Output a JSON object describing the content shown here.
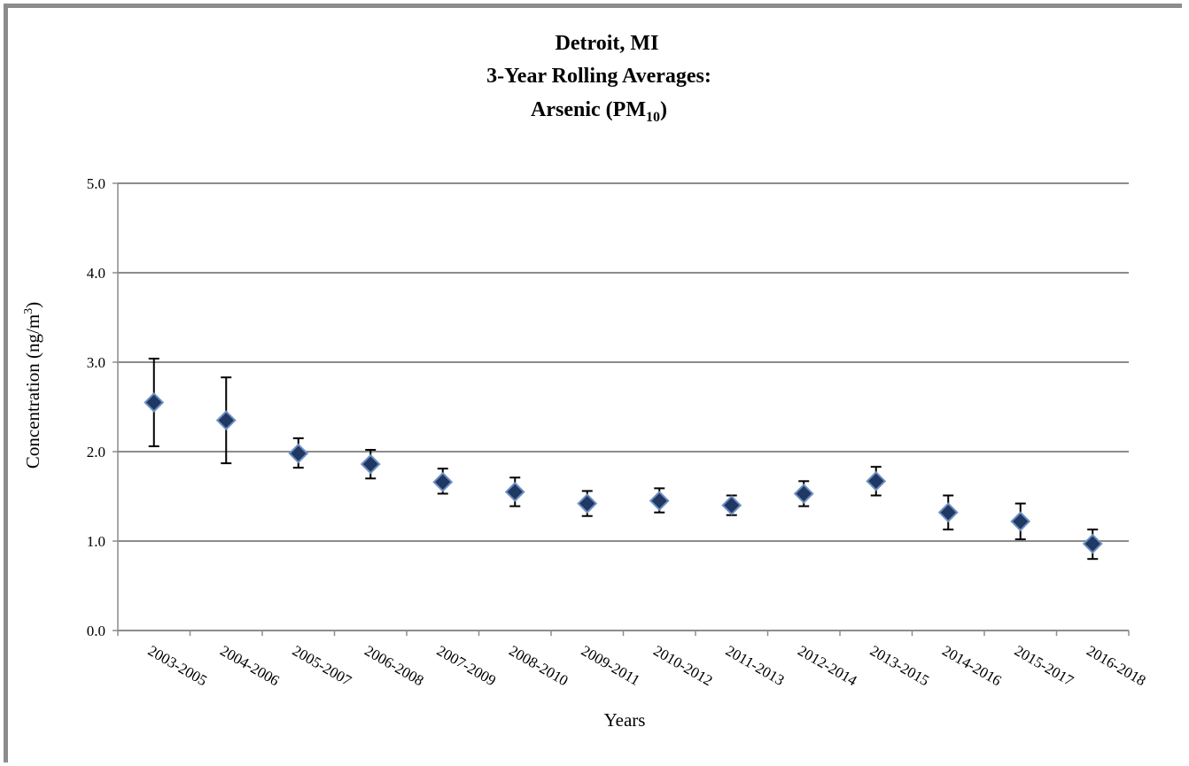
{
  "chart_data": {
    "type": "scatter",
    "title_lines": [
      "Detroit, MI",
      "3-Year Rolling Averages:",
      "Arsenic (PM"
    ],
    "title_subscript": "10",
    "title_suffix": ")",
    "xlabel": "Years",
    "ylabel_main": "Concentration (ng/m",
    "ylabel_sup": "3",
    "ylabel_end": ")",
    "ylim": [
      0,
      5
    ],
    "yticks": [
      "0.0",
      "1.0",
      "2.0",
      "3.0",
      "4.0",
      "5.0"
    ],
    "grid": true,
    "marker_color": "#1f3864",
    "marker_edge": "#6f8fc0",
    "categories": [
      "2003-2005",
      "2004-2006",
      "2005-2007",
      "2006-2008",
      "2007-2009",
      "2008-2010",
      "2009-2011",
      "2010-2012",
      "2011-2013",
      "2012-2014",
      "2013-2015",
      "2014-2016",
      "2015-2017",
      "2016-2018"
    ],
    "values": [
      2.55,
      2.35,
      1.98,
      1.86,
      1.66,
      1.55,
      1.42,
      1.45,
      1.4,
      1.53,
      1.67,
      1.32,
      1.22,
      0.97
    ],
    "error_low": [
      2.06,
      1.87,
      1.82,
      1.7,
      1.53,
      1.39,
      1.28,
      1.32,
      1.29,
      1.39,
      1.51,
      1.13,
      1.02,
      0.8
    ],
    "error_high": [
      3.04,
      2.83,
      2.15,
      2.02,
      1.81,
      1.71,
      1.56,
      1.59,
      1.51,
      1.67,
      1.83,
      1.51,
      1.42,
      1.13
    ]
  }
}
